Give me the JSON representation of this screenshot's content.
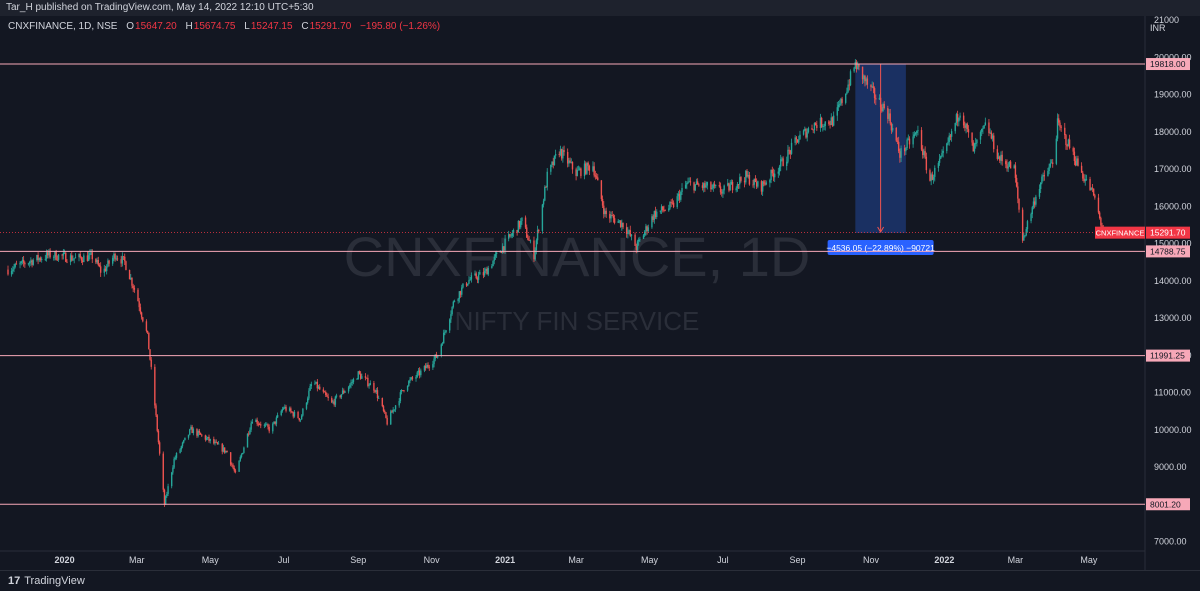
{
  "header": {
    "published": "Tar_H published on TradingView.com, May 14, 2022 12:10 UTC+5:30"
  },
  "legend": {
    "symbol": "CNXFINANCE, 1D, NSE",
    "open_label": "O",
    "open": "15647.20",
    "high_label": "H",
    "high": "15674.75",
    "low_label": "L",
    "low": "15247.15",
    "close_label": "C",
    "close": "15291.70",
    "change": "−195.80 (−1.26%)"
  },
  "watermark": {
    "line1": "CNXFINANCE, 1D",
    "line2": "NIFTY FIN SERVICE"
  },
  "footer": {
    "brand": "TradingView",
    "logo_glyph": "17"
  },
  "colors": {
    "up": "#26a69a",
    "down": "#ef5350",
    "hline": "#f7a8b8",
    "measure_fill": "#1e3a78",
    "measure_label": "#2962ff",
    "last_price": "#f23645"
  },
  "chart_data": {
    "type": "candlestick",
    "currency": "INR",
    "ylim": [
      6800,
      21000
    ],
    "y_ticks": [
      7000,
      8000,
      9000,
      10000,
      11000,
      12000,
      13000,
      14000,
      15000,
      16000,
      17000,
      18000,
      19000,
      20000,
      21000
    ],
    "y_tick_labels": [
      "7000.00",
      "8000.00",
      "9000.00",
      "10000.00",
      "11000.00",
      "12000.00",
      "13000.00",
      "14000.00",
      "15000.00",
      "16000.00",
      "17000.00",
      "18000.00",
      "19000.00",
      "20000.00",
      "21000"
    ],
    "x_range": [
      "2019-11-15",
      "2022-06-15"
    ],
    "x_ticks": [
      {
        "date": "2020-01-01",
        "label": "2020"
      },
      {
        "date": "2020-03-01",
        "label": "Mar"
      },
      {
        "date": "2020-05-01",
        "label": "May"
      },
      {
        "date": "2020-07-01",
        "label": "Jul"
      },
      {
        "date": "2020-09-01",
        "label": "Sep"
      },
      {
        "date": "2020-11-01",
        "label": "Nov"
      },
      {
        "date": "2021-01-01",
        "label": "2021"
      },
      {
        "date": "2021-03-01",
        "label": "Mar"
      },
      {
        "date": "2021-05-01",
        "label": "May"
      },
      {
        "date": "2021-07-01",
        "label": "Jul"
      },
      {
        "date": "2021-09-01",
        "label": "Sep"
      },
      {
        "date": "2021-11-01",
        "label": "Nov"
      },
      {
        "date": "2022-01-01",
        "label": "2022"
      },
      {
        "date": "2022-03-01",
        "label": "Mar"
      },
      {
        "date": "2022-05-01",
        "label": "May"
      }
    ],
    "path": [
      [
        "2019-11-15",
        14300
      ],
      [
        "2019-12-01",
        14500
      ],
      [
        "2019-12-20",
        14700
      ],
      [
        "2020-01-10",
        14600
      ],
      [
        "2020-01-25",
        14650
      ],
      [
        "2020-02-01",
        14200
      ],
      [
        "2020-02-12",
        14700
      ],
      [
        "2020-02-20",
        14500
      ],
      [
        "2020-03-01",
        13600
      ],
      [
        "2020-03-10",
        12500
      ],
      [
        "2020-03-15",
        11000
      ],
      [
        "2020-03-24",
        8000
      ],
      [
        "2020-04-01",
        9200
      ],
      [
        "2020-04-15",
        10000
      ],
      [
        "2020-05-01",
        9700
      ],
      [
        "2020-05-15",
        9400
      ],
      [
        "2020-05-22",
        8800
      ],
      [
        "2020-06-05",
        10300
      ],
      [
        "2020-06-20",
        10000
      ],
      [
        "2020-07-01",
        10600
      ],
      [
        "2020-07-15",
        10300
      ],
      [
        "2020-07-25",
        11300
      ],
      [
        "2020-08-10",
        10700
      ],
      [
        "2020-08-25",
        11200
      ],
      [
        "2020-09-01",
        11500
      ],
      [
        "2020-09-15",
        11100
      ],
      [
        "2020-09-25",
        10200
      ],
      [
        "2020-10-10",
        11200
      ],
      [
        "2020-10-25",
        11600
      ],
      [
        "2020-11-06",
        12000
      ],
      [
        "2020-11-20",
        13500
      ],
      [
        "2020-12-01",
        14000
      ],
      [
        "2020-12-15",
        14200
      ],
      [
        "2021-01-01",
        15000
      ],
      [
        "2021-01-15",
        15600
      ],
      [
        "2021-01-25",
        14700
      ],
      [
        "2021-02-05",
        16800
      ],
      [
        "2021-02-15",
        17500
      ],
      [
        "2021-03-01",
        16900
      ],
      [
        "2021-03-15",
        17100
      ],
      [
        "2021-03-25",
        15800
      ],
      [
        "2021-04-10",
        15500
      ],
      [
        "2021-04-20",
        14900
      ],
      [
        "2021-05-05",
        15800
      ],
      [
        "2021-05-20",
        16000
      ],
      [
        "2021-06-01",
        16600
      ],
      [
        "2021-06-20",
        16500
      ],
      [
        "2021-07-01",
        16400
      ],
      [
        "2021-07-20",
        16800
      ],
      [
        "2021-08-01",
        16500
      ],
      [
        "2021-08-20",
        17200
      ],
      [
        "2021-09-01",
        17800
      ],
      [
        "2021-09-15",
        18200
      ],
      [
        "2021-10-01",
        18300
      ],
      [
        "2021-10-10",
        19000
      ],
      [
        "2021-10-19",
        19818
      ],
      [
        "2021-11-01",
        19100
      ],
      [
        "2021-11-15",
        18500
      ],
      [
        "2021-11-25",
        17400
      ],
      [
        "2021-12-10",
        18000
      ],
      [
        "2021-12-20",
        16700
      ],
      [
        "2022-01-01",
        17400
      ],
      [
        "2022-01-14",
        18600
      ],
      [
        "2022-01-25",
        17500
      ],
      [
        "2022-02-05",
        18200
      ],
      [
        "2022-02-15",
        17300
      ],
      [
        "2022-02-28",
        17000
      ],
      [
        "2022-03-07",
        15100
      ],
      [
        "2022-03-20",
        16500
      ],
      [
        "2022-04-01",
        17200
      ],
      [
        "2022-04-05",
        18200
      ],
      [
        "2022-04-15",
        17600
      ],
      [
        "2022-04-25",
        16900
      ],
      [
        "2022-05-05",
        16300
      ],
      [
        "2022-05-13",
        15292
      ]
    ],
    "horizontal_levels": [
      {
        "value": 19818.0,
        "label": "19818.00"
      },
      {
        "value": 14788.75,
        "label": "14788.75"
      },
      {
        "value": 11991.25,
        "label": "11991.25"
      },
      {
        "value": 8001.2,
        "label": "8001.20"
      }
    ],
    "last_price": {
      "value": 15291.7,
      "label": "15291.70",
      "tag": "CNXFINANCE"
    },
    "measure": {
      "from_date": "2021-10-19",
      "to_date": "2021-11-30",
      "from_price": 19818.0,
      "to_price": 15281.95,
      "label": "−4536.05 (−22.89%) −90721"
    }
  }
}
